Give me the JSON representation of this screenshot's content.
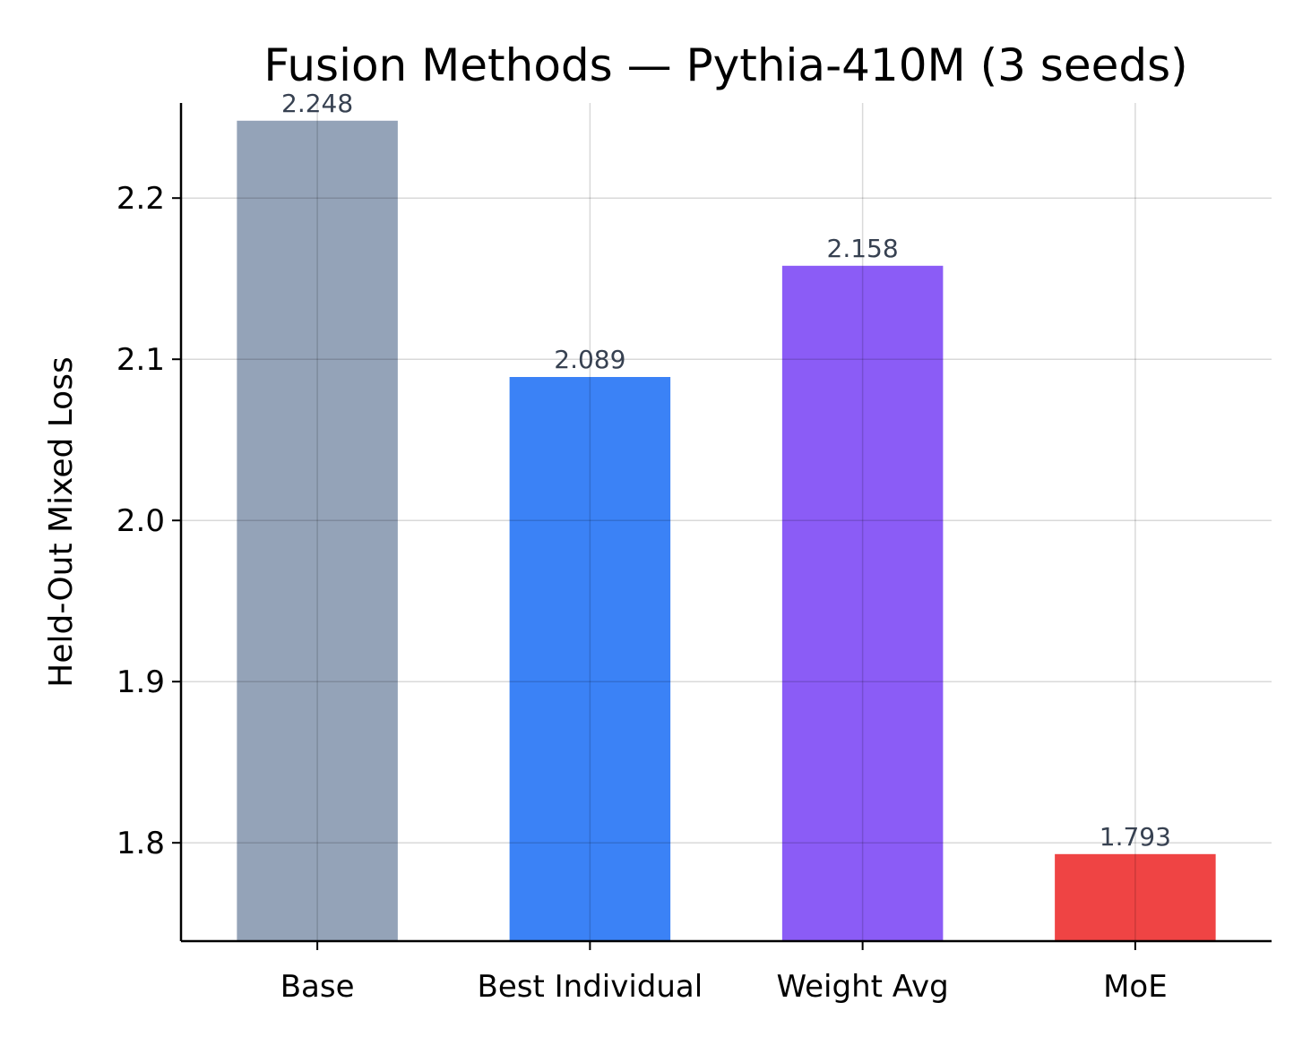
{
  "chart_data": {
    "type": "bar",
    "title": "Fusion Methods — Pythia-410M (3 seeds)",
    "xlabel": "",
    "ylabel": "Held-Out Mixed Loss",
    "categories": [
      "Base",
      "Best Individual",
      "Weight Avg",
      "MoE"
    ],
    "values": [
      2.248,
      2.089,
      2.158,
      1.793
    ],
    "value_labels": [
      "2.248",
      "2.089",
      "2.158",
      "1.793"
    ],
    "colors": [
      "#94a3b8",
      "#3b82f6",
      "#8b5cf6",
      "#ef4444"
    ],
    "ylim": [
      1.739,
      2.259
    ],
    "yticks": [
      1.8,
      1.9,
      2.0,
      2.1,
      2.2
    ],
    "ytick_labels": [
      "1.8",
      "1.9",
      "2.0",
      "2.1",
      "2.2"
    ],
    "grid": true,
    "legend": "none"
  }
}
